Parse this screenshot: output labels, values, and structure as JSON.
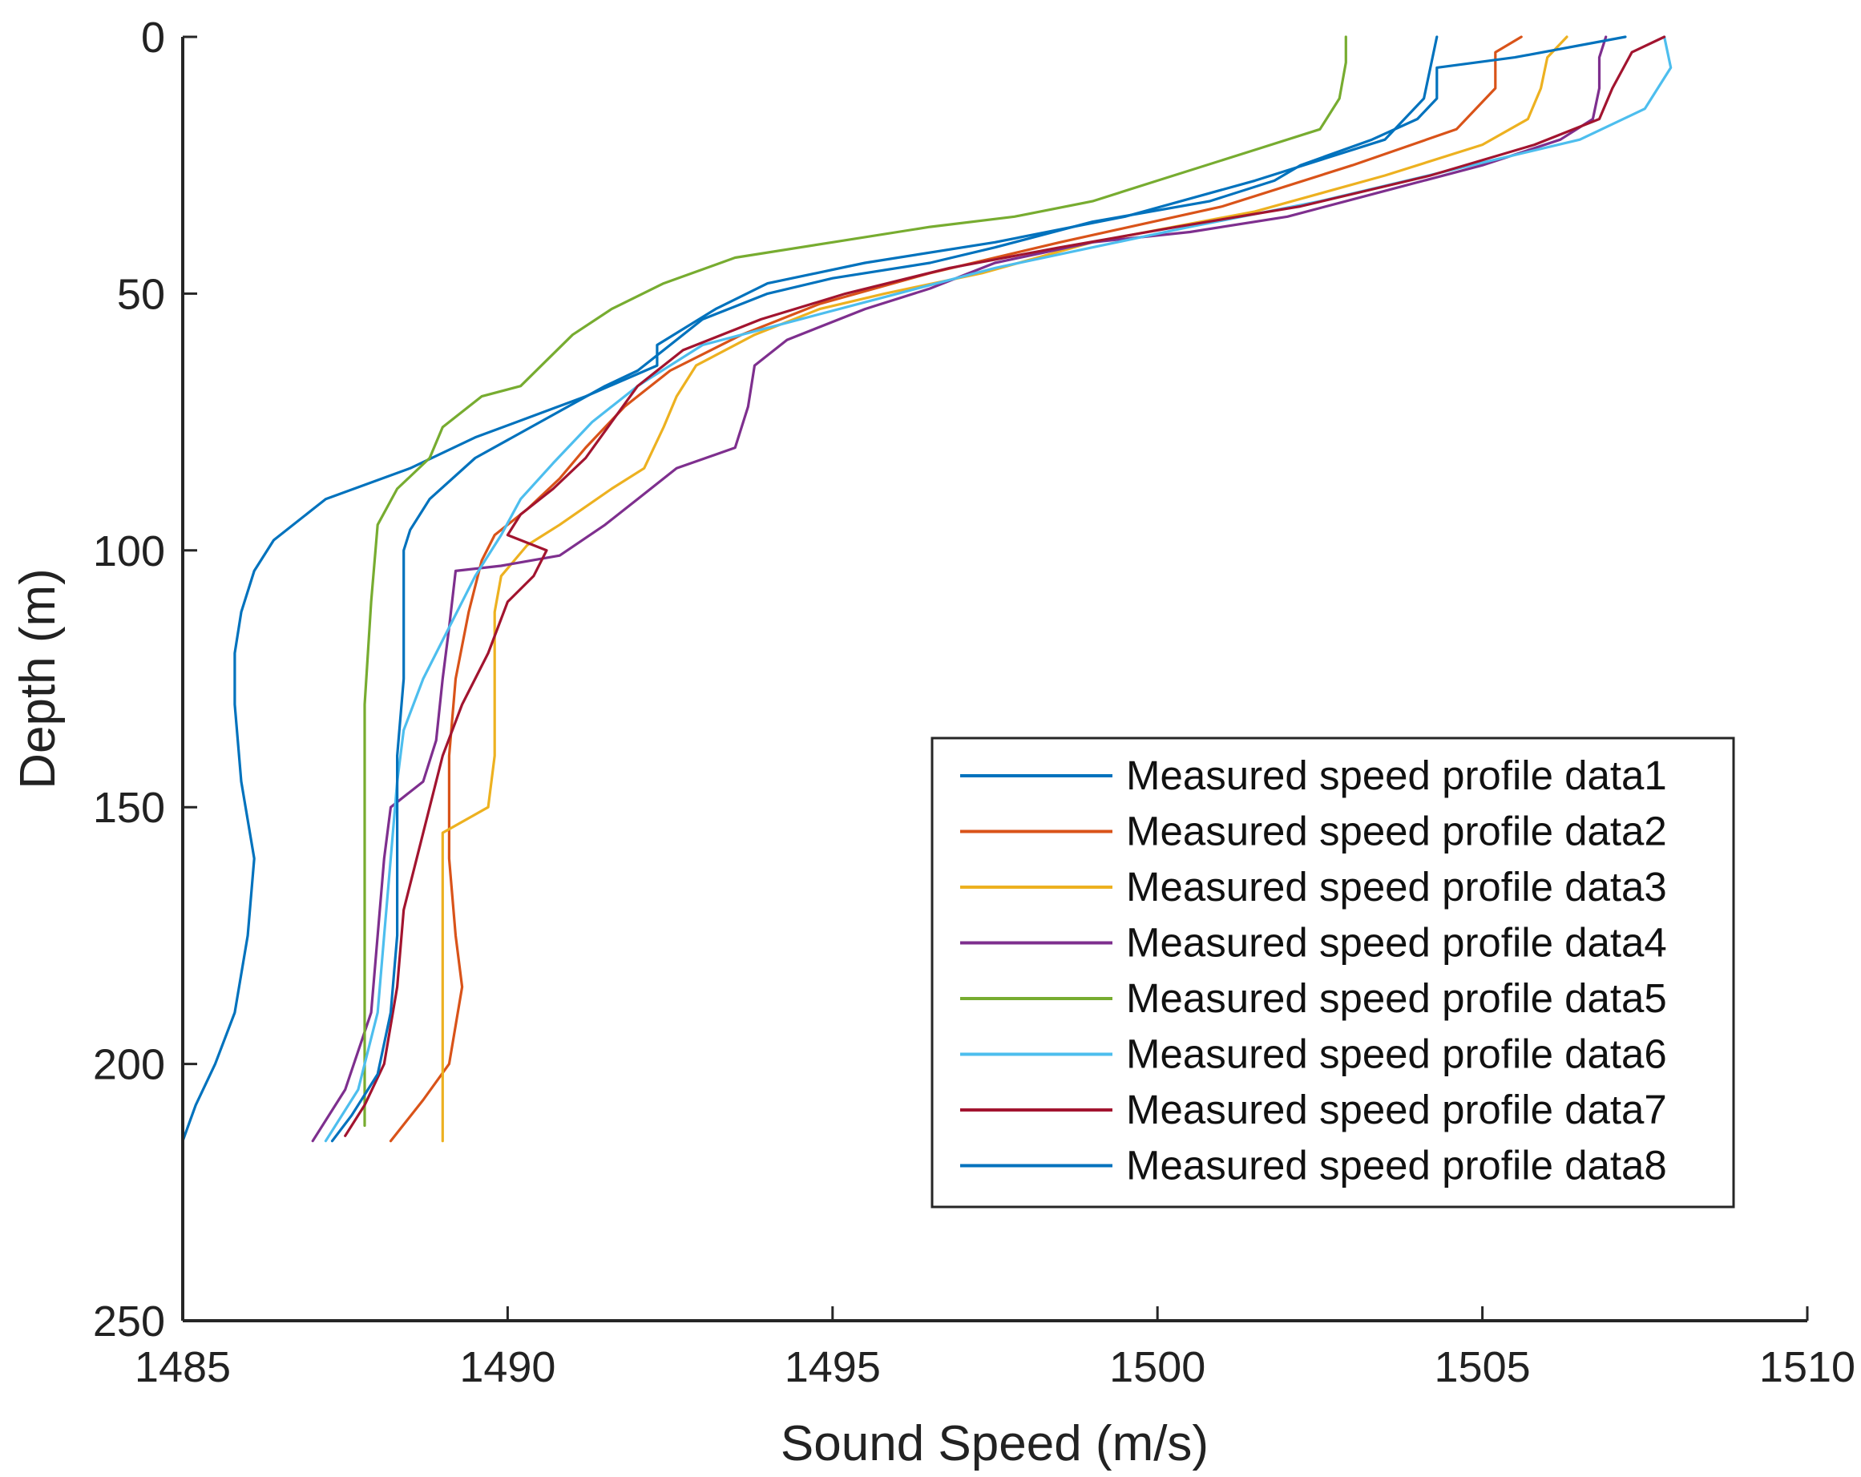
{
  "chart_data": {
    "type": "line",
    "title": "",
    "xlabel": "Sound Speed (m/s)",
    "ylabel": "Depth (m)",
    "xlim": [
      1485,
      1510
    ],
    "ylim": [
      0,
      250
    ],
    "y_reversed": true,
    "xticks": [
      1485,
      1490,
      1495,
      1500,
      1505,
      1510
    ],
    "yticks": [
      0,
      50,
      100,
      150,
      200,
      250
    ],
    "legend_position": "lower-right",
    "grid": false,
    "series": [
      {
        "name": "Measured speed profile data1",
        "color": "#0072BD",
        "points": [
          [
            1504.3,
            0
          ],
          [
            1504.2,
            6
          ],
          [
            1504.1,
            12
          ],
          [
            1503.5,
            20
          ],
          [
            1501.5,
            28
          ],
          [
            1499.5,
            35
          ],
          [
            1497.5,
            40
          ],
          [
            1495.5,
            44
          ],
          [
            1494.0,
            48
          ],
          [
            1493.2,
            53
          ],
          [
            1492.3,
            60
          ],
          [
            1492.3,
            64
          ],
          [
            1491.2,
            70
          ],
          [
            1489.5,
            78
          ],
          [
            1488.5,
            84
          ],
          [
            1487.2,
            90
          ],
          [
            1486.4,
            98
          ],
          [
            1486.1,
            104
          ],
          [
            1485.9,
            112
          ],
          [
            1485.8,
            120
          ],
          [
            1485.8,
            130
          ],
          [
            1485.9,
            145
          ],
          [
            1486.1,
            160
          ],
          [
            1486.0,
            175
          ],
          [
            1485.8,
            190
          ],
          [
            1485.5,
            200
          ],
          [
            1485.2,
            208
          ],
          [
            1485.0,
            215
          ]
        ]
      },
      {
        "name": "Measured speed profile data2",
        "color": "#D95319",
        "points": [
          [
            1505.6,
            0
          ],
          [
            1505.2,
            3
          ],
          [
            1505.2,
            10
          ],
          [
            1504.6,
            18
          ],
          [
            1503.0,
            25
          ],
          [
            1501.0,
            33
          ],
          [
            1498.5,
            40
          ],
          [
            1496.5,
            46
          ],
          [
            1494.8,
            52
          ],
          [
            1493.6,
            58
          ],
          [
            1492.5,
            65
          ],
          [
            1491.8,
            72
          ],
          [
            1491.2,
            80
          ],
          [
            1490.8,
            86
          ],
          [
            1490.3,
            92
          ],
          [
            1489.8,
            97
          ],
          [
            1489.6,
            102
          ],
          [
            1489.4,
            112
          ],
          [
            1489.2,
            125
          ],
          [
            1489.1,
            140
          ],
          [
            1489.1,
            160
          ],
          [
            1489.2,
            175
          ],
          [
            1489.3,
            185
          ],
          [
            1489.1,
            200
          ],
          [
            1488.7,
            207
          ],
          [
            1488.2,
            215
          ]
        ]
      },
      {
        "name": "Measured speed profile data3",
        "color": "#EDB120",
        "points": [
          [
            1506.3,
            0
          ],
          [
            1506.0,
            4
          ],
          [
            1505.9,
            10
          ],
          [
            1505.7,
            16
          ],
          [
            1505.0,
            21
          ],
          [
            1503.5,
            27
          ],
          [
            1501.5,
            34
          ],
          [
            1499.0,
            40
          ],
          [
            1497.3,
            46
          ],
          [
            1495.8,
            50
          ],
          [
            1494.8,
            53
          ],
          [
            1493.8,
            58
          ],
          [
            1492.9,
            64
          ],
          [
            1492.6,
            70
          ],
          [
            1492.4,
            76
          ],
          [
            1492.1,
            84
          ],
          [
            1491.6,
            88
          ],
          [
            1490.8,
            95
          ],
          [
            1490.3,
            99
          ],
          [
            1489.9,
            105
          ],
          [
            1489.8,
            112
          ],
          [
            1489.8,
            125
          ],
          [
            1489.8,
            140
          ],
          [
            1489.7,
            150
          ],
          [
            1489.0,
            155
          ],
          [
            1489.0,
            170
          ],
          [
            1489.0,
            190
          ],
          [
            1489.0,
            215
          ]
        ]
      },
      {
        "name": "Measured speed profile data4",
        "color": "#7E2F8E",
        "points": [
          [
            1506.9,
            0
          ],
          [
            1506.8,
            4
          ],
          [
            1506.8,
            10
          ],
          [
            1506.7,
            16
          ],
          [
            1506.2,
            20
          ],
          [
            1505.0,
            25
          ],
          [
            1503.5,
            30
          ],
          [
            1502.0,
            35
          ],
          [
            1500.5,
            38
          ],
          [
            1499.0,
            40
          ],
          [
            1497.5,
            44
          ],
          [
            1496.5,
            49
          ],
          [
            1495.5,
            53
          ],
          [
            1494.3,
            59
          ],
          [
            1493.8,
            64
          ],
          [
            1493.7,
            72
          ],
          [
            1493.5,
            80
          ],
          [
            1492.6,
            84
          ],
          [
            1492.0,
            90
          ],
          [
            1491.5,
            95
          ],
          [
            1490.8,
            101
          ],
          [
            1489.9,
            103
          ],
          [
            1489.2,
            104
          ],
          [
            1489.1,
            115
          ],
          [
            1489.0,
            125
          ],
          [
            1488.9,
            137
          ],
          [
            1488.7,
            145
          ],
          [
            1488.2,
            150
          ],
          [
            1488.1,
            160
          ],
          [
            1488.0,
            175
          ],
          [
            1487.9,
            190
          ],
          [
            1487.5,
            205
          ],
          [
            1487.0,
            215
          ]
        ]
      },
      {
        "name": "Measured speed profile data5",
        "color": "#77AC30",
        "points": [
          [
            1502.9,
            0
          ],
          [
            1502.9,
            5
          ],
          [
            1502.8,
            12
          ],
          [
            1502.5,
            18
          ],
          [
            1501.5,
            22
          ],
          [
            1500.0,
            28
          ],
          [
            1499.0,
            32
          ],
          [
            1497.8,
            35
          ],
          [
            1496.5,
            37
          ],
          [
            1495.0,
            40
          ],
          [
            1493.5,
            43
          ],
          [
            1492.4,
            48
          ],
          [
            1491.6,
            53
          ],
          [
            1491.0,
            58
          ],
          [
            1490.6,
            63
          ],
          [
            1490.2,
            68
          ],
          [
            1489.6,
            70
          ],
          [
            1489.0,
            76
          ],
          [
            1488.8,
            82
          ],
          [
            1488.3,
            88
          ],
          [
            1488.0,
            95
          ],
          [
            1487.9,
            110
          ],
          [
            1487.8,
            130
          ],
          [
            1487.8,
            150
          ],
          [
            1487.8,
            170
          ],
          [
            1487.8,
            190
          ],
          [
            1487.8,
            200
          ],
          [
            1487.8,
            212
          ]
        ]
      },
      {
        "name": "Measured speed profile data6",
        "color": "#4DBEEE",
        "points": [
          [
            1507.8,
            0
          ],
          [
            1507.9,
            6
          ],
          [
            1507.5,
            14
          ],
          [
            1506.5,
            20
          ],
          [
            1504.5,
            26
          ],
          [
            1502.5,
            32
          ],
          [
            1500.5,
            37
          ],
          [
            1499.0,
            41
          ],
          [
            1497.5,
            45
          ],
          [
            1496.0,
            50
          ],
          [
            1494.5,
            55
          ],
          [
            1493.0,
            60
          ],
          [
            1492.0,
            68
          ],
          [
            1491.3,
            75
          ],
          [
            1490.7,
            83
          ],
          [
            1490.2,
            90
          ],
          [
            1489.9,
            97
          ],
          [
            1489.5,
            105
          ],
          [
            1489.1,
            115
          ],
          [
            1488.7,
            125
          ],
          [
            1488.4,
            135
          ],
          [
            1488.3,
            145
          ],
          [
            1488.2,
            160
          ],
          [
            1488.1,
            175
          ],
          [
            1488.0,
            190
          ],
          [
            1487.7,
            205
          ],
          [
            1487.2,
            215
          ]
        ]
      },
      {
        "name": "Measured speed profile data7",
        "color": "#A2142F",
        "points": [
          [
            1507.8,
            0
          ],
          [
            1507.3,
            3
          ],
          [
            1507.0,
            10
          ],
          [
            1506.8,
            16
          ],
          [
            1505.8,
            21
          ],
          [
            1504.2,
            27
          ],
          [
            1502.2,
            33
          ],
          [
            1500.3,
            37
          ],
          [
            1498.5,
            41
          ],
          [
            1496.8,
            45
          ],
          [
            1495.2,
            50
          ],
          [
            1493.9,
            55
          ],
          [
            1492.7,
            61
          ],
          [
            1492.0,
            68
          ],
          [
            1491.6,
            75
          ],
          [
            1491.2,
            82
          ],
          [
            1490.7,
            88
          ],
          [
            1490.2,
            93
          ],
          [
            1490.0,
            97
          ],
          [
            1490.6,
            100
          ],
          [
            1490.4,
            105
          ],
          [
            1490.0,
            110
          ],
          [
            1489.7,
            120
          ],
          [
            1489.3,
            130
          ],
          [
            1489.0,
            140
          ],
          [
            1488.8,
            150
          ],
          [
            1488.6,
            160
          ],
          [
            1488.4,
            170
          ],
          [
            1488.3,
            185
          ],
          [
            1488.1,
            200
          ],
          [
            1487.8,
            208
          ],
          [
            1487.5,
            214
          ]
        ]
      },
      {
        "name": "Measured speed profile data8",
        "color": "#0072BD",
        "points": [
          [
            1507.2,
            0
          ],
          [
            1505.5,
            4
          ],
          [
            1504.3,
            6
          ],
          [
            1504.3,
            12
          ],
          [
            1504.0,
            16
          ],
          [
            1503.3,
            20
          ],
          [
            1502.2,
            25
          ],
          [
            1501.8,
            28
          ],
          [
            1500.8,
            32
          ],
          [
            1499.0,
            36
          ],
          [
            1497.5,
            41
          ],
          [
            1496.5,
            44
          ],
          [
            1495.0,
            47
          ],
          [
            1494.0,
            50
          ],
          [
            1493.0,
            55
          ],
          [
            1492.5,
            60
          ],
          [
            1492.0,
            65
          ],
          [
            1491.5,
            68
          ],
          [
            1490.5,
            75
          ],
          [
            1489.5,
            82
          ],
          [
            1488.8,
            90
          ],
          [
            1488.5,
            96
          ],
          [
            1488.4,
            100
          ],
          [
            1488.4,
            110
          ],
          [
            1488.4,
            125
          ],
          [
            1488.3,
            140
          ],
          [
            1488.3,
            160
          ],
          [
            1488.3,
            175
          ],
          [
            1488.2,
            190
          ],
          [
            1488.0,
            202
          ],
          [
            1487.6,
            210
          ],
          [
            1487.3,
            215
          ]
        ]
      }
    ]
  }
}
